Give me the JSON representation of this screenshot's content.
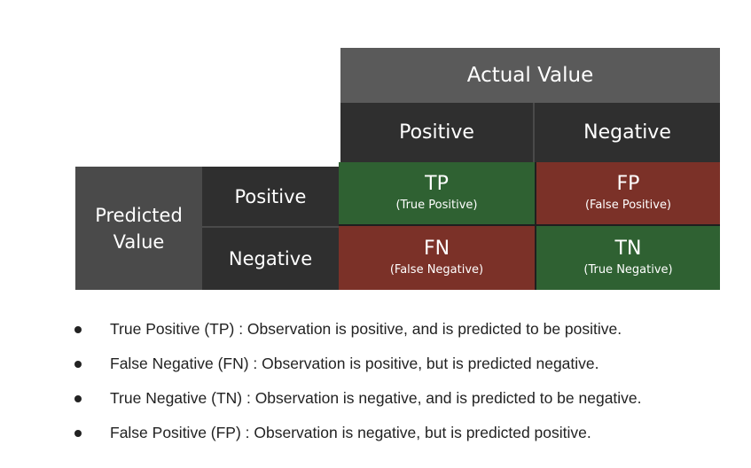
{
  "matrix": {
    "actual_header": "Actual Value",
    "predicted_header": [
      "Predicted",
      "Value"
    ],
    "columns": [
      "Positive",
      "Negative"
    ],
    "rows": [
      "Positive",
      "Negative"
    ],
    "cells": {
      "tp": {
        "abbr": "TP",
        "full": "(True Positive)"
      },
      "fp": {
        "abbr": "FP",
        "full": "(False Positive)"
      },
      "fn": {
        "abbr": "FN",
        "full": "(False Negative)"
      },
      "tn": {
        "abbr": "TN",
        "full": "(True Negative)"
      }
    },
    "colors": {
      "correct": "#2f6132",
      "incorrect": "#7b3128",
      "header_light": "#5a5a5a",
      "header_dark": "#2f2f2f"
    }
  },
  "bullets": [
    "True Positive (TP) : Observation is positive, and is predicted to be positive.",
    "False Negative (FN) : Observation is positive, but is predicted negative.",
    "True Negative (TN) : Observation is negative, and is predicted to be negative.",
    "False Positive (FP) : Observation is negative, but is predicted positive."
  ]
}
